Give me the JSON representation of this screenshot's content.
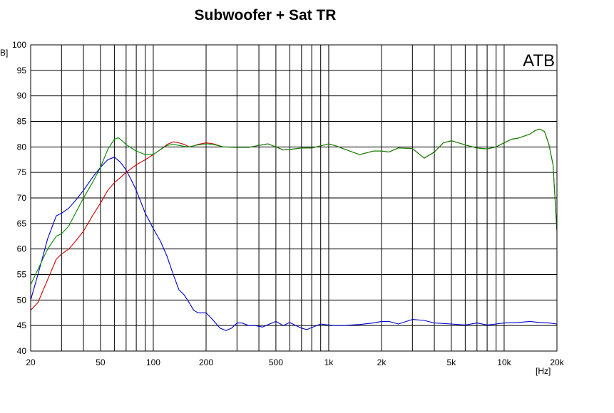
{
  "chart_data": {
    "type": "line",
    "title": "Subwoofer + Sat  TR",
    "corner_label": "ATB",
    "y_unit_fragment": "B]",
    "x_unit": "[Hz]",
    "x_scale": "log",
    "xlim": [
      20,
      20000
    ],
    "ylim": [
      40,
      100
    ],
    "grid": true,
    "y_ticks": [
      100,
      95,
      90,
      85,
      80,
      75,
      70,
      65,
      60,
      55,
      50,
      45,
      40
    ],
    "x_tick_labels": [
      {
        "value": 20,
        "label": "20"
      },
      {
        "value": 50,
        "label": "50"
      },
      {
        "value": 100,
        "label": "100"
      },
      {
        "value": 200,
        "label": "200"
      },
      {
        "value": 500,
        "label": "500"
      },
      {
        "value": 1000,
        "label": "1k"
      },
      {
        "value": 2000,
        "label": "2k"
      },
      {
        "value": 5000,
        "label": "5k"
      },
      {
        "value": 10000,
        "label": "10k"
      },
      {
        "value": 20000,
        "label": "20k"
      }
    ],
    "series": [
      {
        "color": "#0000cc",
        "x": [
          20,
          22,
          25,
          28,
          30,
          33,
          36,
          40,
          45,
          50,
          55,
          60,
          65,
          70,
          75,
          80,
          90,
          100,
          110,
          120,
          130,
          140,
          150,
          160,
          170,
          180,
          200,
          220,
          240,
          260,
          280,
          300,
          320,
          350,
          380,
          420,
          460,
          500,
          550,
          600,
          650,
          700,
          750,
          800,
          900,
          1000,
          1100,
          1200,
          1500,
          1800,
          2000,
          2200,
          2500,
          3000,
          3500,
          4000,
          5000,
          6000,
          7000,
          8000,
          9000,
          10000,
          12000,
          14000,
          16000,
          18000,
          20000
        ],
        "y": [
          50,
          55,
          62,
          66.5,
          67,
          68,
          69.5,
          71.5,
          74,
          76,
          77.5,
          78,
          77,
          75.5,
          73.5,
          71.5,
          67,
          64,
          61.5,
          58.5,
          55,
          52,
          51,
          49.5,
          48,
          47.5,
          47.5,
          46,
          44.5,
          44,
          44.5,
          45.5,
          45.5,
          45,
          45,
          44.7,
          45.3,
          45.8,
          45,
          45.6,
          45,
          44.5,
          44.2,
          44.6,
          45.3,
          45.1,
          45,
          45,
          45.2,
          45.5,
          45.8,
          45.8,
          45.3,
          46.2,
          46,
          45.5,
          45.3,
          45.1,
          45.5,
          45.1,
          45.3,
          45.5,
          45.6,
          45.8,
          45.6,
          45.5,
          45.3
        ]
      },
      {
        "color": "#cc0000",
        "x": [
          20,
          22,
          25,
          28,
          30,
          33,
          36,
          40,
          45,
          50,
          55,
          60,
          65,
          70,
          80,
          90,
          100,
          110,
          120,
          130,
          140,
          150,
          160,
          170,
          180,
          200,
          220,
          250,
          300,
          350,
          400,
          450,
          500,
          550,
          600,
          700,
          800,
          900,
          1000,
          1100,
          1200,
          1500,
          1800,
          2000,
          2200,
          2500,
          3000,
          3500,
          4000,
          4500,
          5000,
          5500,
          6000,
          7000,
          8000,
          9000,
          10000,
          11000,
          12000,
          14000,
          15000,
          16000,
          17000,
          18000,
          19000,
          20000
        ],
        "y": [
          48,
          49.5,
          54,
          58,
          59,
          60,
          61.5,
          63.5,
          66.5,
          69,
          71.5,
          73,
          74,
          75,
          76.5,
          77.5,
          78.5,
          79.5,
          80.5,
          81,
          80.8,
          80.5,
          80,
          80.2,
          80.5,
          80.8,
          80.6,
          80,
          79.9,
          79.9,
          80.3,
          80.6,
          80,
          79.4,
          79.5,
          79.8,
          79.8,
          80.2,
          80.6,
          80.2,
          79.7,
          78.5,
          79.2,
          79.2,
          79,
          79.8,
          79.7,
          77.8,
          79,
          80.8,
          81.2,
          80.8,
          80.4,
          79.8,
          79.6,
          80,
          80.8,
          81.5,
          81.7,
          82.5,
          83.2,
          83.5,
          83,
          80.5,
          76.5,
          63.5
        ]
      },
      {
        "color": "#008800",
        "x": [
          20,
          22,
          25,
          28,
          30,
          33,
          36,
          40,
          45,
          50,
          55,
          60,
          63,
          65,
          70,
          75,
          80,
          90,
          100,
          110,
          120,
          130,
          140,
          150,
          160,
          170,
          180,
          200,
          220,
          250,
          300,
          350,
          400,
          450,
          500,
          550,
          600,
          700,
          800,
          900,
          1000,
          1100,
          1200,
          1500,
          1800,
          2000,
          2200,
          2500,
          3000,
          3500,
          4000,
          4500,
          5000,
          5500,
          6000,
          7000,
          8000,
          9000,
          10000,
          11000,
          12000,
          14000,
          15000,
          16000,
          17000,
          18000,
          19000,
          20000
        ],
        "y": [
          53,
          56,
          60,
          62.5,
          63,
          64.5,
          67,
          70,
          73,
          76,
          79.5,
          81.5,
          81.8,
          81.5,
          80.5,
          79.8,
          79.2,
          78.5,
          78.5,
          79.5,
          80.3,
          80.5,
          80.3,
          80.1,
          80,
          80.2,
          80.4,
          80.6,
          80.5,
          80,
          79.9,
          79.9,
          80.3,
          80.6,
          80,
          79.4,
          79.5,
          79.8,
          79.8,
          80.2,
          80.6,
          80.2,
          79.7,
          78.5,
          79.2,
          79.2,
          79,
          79.8,
          79.7,
          77.8,
          79,
          80.8,
          81.2,
          80.8,
          80.4,
          79.8,
          79.6,
          80,
          80.8,
          81.5,
          81.7,
          82.5,
          83.2,
          83.5,
          83,
          80.5,
          76.5,
          63.5
        ]
      }
    ]
  }
}
